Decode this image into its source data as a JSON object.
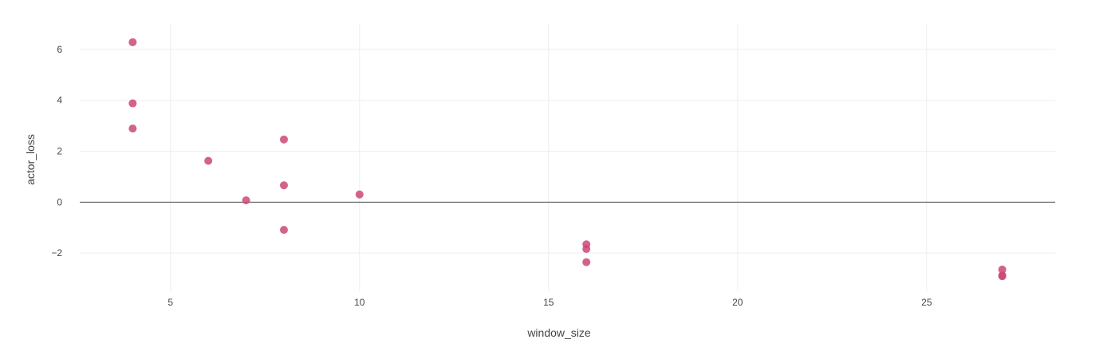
{
  "chart_data": {
    "type": "scatter",
    "title": "",
    "xlabel": "window_size",
    "ylabel": "actor_loss",
    "xlim": [
      2.6,
      28.4
    ],
    "ylim": [
      -3.5,
      7.0
    ],
    "xticks": [
      5,
      10,
      15,
      20,
      25
    ],
    "yticks": [
      -2,
      0,
      2,
      4,
      6
    ],
    "xtick_labels": [
      "5",
      "10",
      "15",
      "20",
      "25"
    ],
    "ytick_labels": [
      "−2",
      "0",
      "2",
      "4",
      "6"
    ],
    "grid": true,
    "zero_line": true,
    "marker_color": "#cc4778",
    "series": [
      {
        "x": [
          4,
          4,
          4,
          6,
          7,
          8,
          8,
          8,
          10,
          16,
          16,
          16,
          27,
          27,
          27
        ],
        "y": [
          6.28,
          3.88,
          2.89,
          1.62,
          0.07,
          2.46,
          0.66,
          -1.09,
          0.3,
          -1.66,
          -1.84,
          -2.36,
          -2.65,
          -2.88,
          -2.91
        ]
      }
    ]
  }
}
